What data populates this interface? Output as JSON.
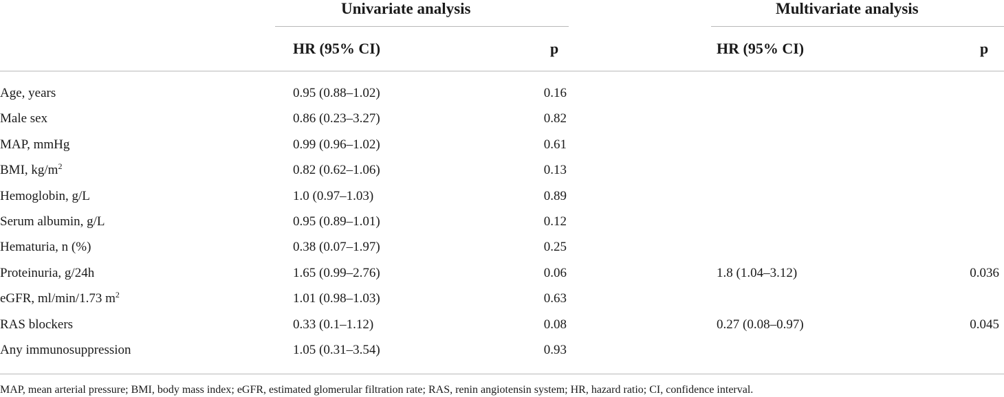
{
  "table": {
    "group_headers": {
      "univariate": "Univariate analysis",
      "multivariate": "Multivariate analysis"
    },
    "column_headers": {
      "uni_hr": "HR (95% CI)",
      "uni_p": "p",
      "multi_hr": "HR (95% CI)",
      "multi_p": "p"
    },
    "rows": [
      {
        "variable": "Age, years",
        "sup": "",
        "uni_hr": "0.95 (0.88–1.02)",
        "uni_p": "0.16",
        "multi_hr": "",
        "multi_p": ""
      },
      {
        "variable": "Male sex",
        "sup": "",
        "uni_hr": "0.86 (0.23–3.27)",
        "uni_p": "0.82",
        "multi_hr": "",
        "multi_p": ""
      },
      {
        "variable": "MAP, mmHg",
        "sup": "",
        "uni_hr": "0.99 (0.96–1.02)",
        "uni_p": "0.61",
        "multi_hr": "",
        "multi_p": ""
      },
      {
        "variable": "BMI, kg/m",
        "sup": "2",
        "uni_hr": "0.82 (0.62–1.06)",
        "uni_p": "0.13",
        "multi_hr": "",
        "multi_p": ""
      },
      {
        "variable": "Hemoglobin, g/L",
        "sup": "",
        "uni_hr": "1.0 (0.97–1.03)",
        "uni_p": "0.89",
        "multi_hr": "",
        "multi_p": ""
      },
      {
        "variable": "Serum albumin, g/L",
        "sup": "",
        "uni_hr": "0.95 (0.89–1.01)",
        "uni_p": "0.12",
        "multi_hr": "",
        "multi_p": ""
      },
      {
        "variable": "Hematuria, n (%)",
        "sup": "",
        "uni_hr": "0.38 (0.07–1.97)",
        "uni_p": "0.25",
        "multi_hr": "",
        "multi_p": ""
      },
      {
        "variable": "Proteinuria, g/24h",
        "sup": "",
        "uni_hr": "1.65 (0.99–2.76)",
        "uni_p": "0.06",
        "multi_hr": "1.8 (1.04–3.12)",
        "multi_p": "0.036"
      },
      {
        "variable": "eGFR, ml/min/1.73 m",
        "sup": "2",
        "uni_hr": "1.01 (0.98–1.03)",
        "uni_p": "0.63",
        "multi_hr": "",
        "multi_p": ""
      },
      {
        "variable": "RAS blockers",
        "sup": "",
        "uni_hr": "0.33 (0.1–1.12)",
        "uni_p": "0.08",
        "multi_hr": "0.27 (0.08–0.97)",
        "multi_p": "0.045"
      },
      {
        "variable": "Any immunosuppression",
        "sup": "",
        "uni_hr": "1.05 (0.31–3.54)",
        "uni_p": "0.93",
        "multi_hr": "",
        "multi_p": ""
      }
    ],
    "footnote": "MAP, mean arterial pressure; BMI, body mass index; eGFR, estimated glomerular filtration rate; RAS, renin angiotensin system; HR, hazard ratio; CI, confidence interval."
  }
}
